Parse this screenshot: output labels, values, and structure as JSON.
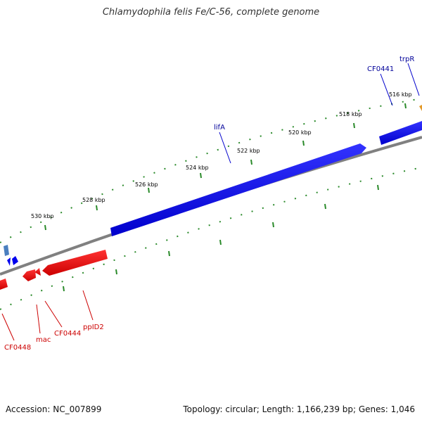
{
  "title": "Chlamydophila felis Fe/C-56, complete genome",
  "accession": "Accession: NC_007899",
  "stats": "Topology: circular; Length: 1,166,239 bp; Genes: 1,046",
  "ticks": [
    "530 kbp",
    "528 kbp",
    "526 kbp",
    "524 kbp",
    "522 kbp",
    "520 kbp",
    "518 kbp",
    "516 kbp"
  ],
  "genes_forward": [
    {
      "label": "lifA",
      "color": "#0000dd"
    },
    {
      "label": "CF0441",
      "color": "#0000dd"
    },
    {
      "label": "trpR",
      "color": "#0000dd"
    }
  ],
  "genes_reverse": [
    {
      "label": "CF0448",
      "color": "#dd0000"
    },
    {
      "label": "mac",
      "color": "#dd0000"
    },
    {
      "label": "CF0444",
      "color": "#dd0000"
    },
    {
      "label": "ppID2",
      "color": "#dd0000"
    }
  ],
  "colors": {
    "forward": "#0000ee",
    "reverse": "#ee0000",
    "backbone": "#808080",
    "tick": "#2a8a2a",
    "gene_label_forward": "#000099",
    "gene_label_reverse": "#cc0000"
  }
}
